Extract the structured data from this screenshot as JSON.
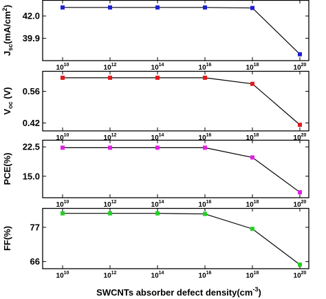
{
  "chart_data": [
    {
      "type": "line",
      "x_tick_labels": [
        {
          "base": "10",
          "exp": "10"
        },
        {
          "base": "10",
          "exp": "12"
        },
        {
          "base": "10",
          "exp": "14"
        },
        {
          "base": "10",
          "exp": "16"
        },
        {
          "base": "10",
          "exp": "18"
        },
        {
          "base": "10",
          "exp": "20"
        }
      ],
      "x": [
        10,
        12,
        14,
        16,
        18,
        20
      ],
      "values": [
        42.8,
        42.8,
        42.8,
        42.8,
        42.75,
        38.4
      ],
      "ylabel": {
        "main": "J",
        "sub": "sc",
        "rest": "(mA/cm",
        "sup": "2",
        "end": ")"
      },
      "y_ticks": [
        39.9,
        42.0
      ],
      "y_tick_labels": [
        "39.9",
        "42.0"
      ],
      "ylim": [
        37.8,
        43.5
      ],
      "marker_color": "#1f1fd6",
      "grid": false
    },
    {
      "type": "line",
      "x_tick_labels": [
        {
          "base": "10",
          "exp": "10"
        },
        {
          "base": "10",
          "exp": "12"
        },
        {
          "base": "10",
          "exp": "14"
        },
        {
          "base": "10",
          "exp": "16"
        },
        {
          "base": "10",
          "exp": "18"
        },
        {
          "base": "10",
          "exp": "20"
        }
      ],
      "x": [
        10,
        12,
        14,
        16,
        18,
        20
      ],
      "values": [
        0.62,
        0.62,
        0.62,
        0.62,
        0.593,
        0.412
      ],
      "ylabel": {
        "main": "V",
        "sub": "oc",
        "rest": " (V)",
        "sup": "",
        "end": ""
      },
      "y_ticks": [
        0.42,
        0.56
      ],
      "y_tick_labels": [
        "0.42",
        "0.56"
      ],
      "ylim": [
        0.385,
        0.65
      ],
      "marker_color": "#e01b1b",
      "grid": false
    },
    {
      "type": "line",
      "x_tick_labels": [
        {
          "base": "10",
          "exp": "10"
        },
        {
          "base": "10",
          "exp": "12"
        },
        {
          "base": "10",
          "exp": "14"
        },
        {
          "base": "10",
          "exp": "16"
        },
        {
          "base": "10",
          "exp": "18"
        },
        {
          "base": "10",
          "exp": "20"
        }
      ],
      "x": [
        10,
        12,
        14,
        16,
        18,
        20
      ],
      "values": [
        22.3,
        22.3,
        22.3,
        22.3,
        19.8,
        10.9
      ],
      "ylabel": {
        "main": "PCE(%)",
        "sub": "",
        "rest": "",
        "sup": "",
        "end": ""
      },
      "y_ticks": [
        15.0,
        22.5
      ],
      "y_tick_labels": [
        "15.0",
        "22.5"
      ],
      "ylim": [
        9.5,
        24.3
      ],
      "marker_color": "#e020e0",
      "grid": false
    },
    {
      "type": "line",
      "x_tick_labels": [
        {
          "base": "10",
          "exp": "10"
        },
        {
          "base": "10",
          "exp": "12"
        },
        {
          "base": "10",
          "exp": "14"
        },
        {
          "base": "10",
          "exp": "16"
        },
        {
          "base": "10",
          "exp": "18"
        },
        {
          "base": "10",
          "exp": "20"
        }
      ],
      "x": [
        10,
        12,
        14,
        16,
        18,
        20
      ],
      "values": [
        81.5,
        81.5,
        81.5,
        81.3,
        76.5,
        65.0
      ],
      "ylabel": {
        "main": "FF(%)",
        "sub": "",
        "rest": "",
        "sup": "",
        "end": ""
      },
      "y_ticks": [
        66,
        77
      ],
      "y_tick_labels": [
        "66",
        "77"
      ],
      "ylim": [
        63.7,
        83.2
      ],
      "marker_color": "#22d022",
      "grid": false
    }
  ],
  "xlabel": {
    "main": "SWCNTs absorber defect density(cm",
    "sup": "-3",
    "end": ")"
  }
}
